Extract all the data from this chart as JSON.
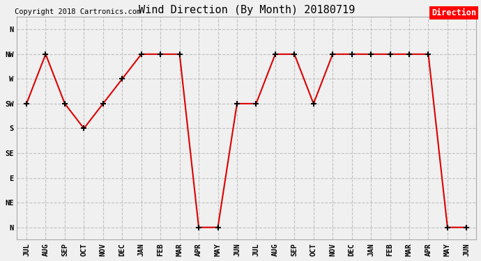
{
  "title": "Wind Direction (By Month) 20180719",
  "copyright": "Copyright 2018 Cartronics.com",
  "legend_label": "Direction",
  "legend_bg": "#ff0000",
  "legend_text_color": "#ffffff",
  "x_labels": [
    "JUL",
    "AUG",
    "SEP",
    "OCT",
    "NOV",
    "DEC",
    "JAN",
    "FEB",
    "MAR",
    "APR",
    "MAY",
    "JUN",
    "JUL",
    "AUG",
    "SEP",
    "OCT",
    "NOV",
    "DEC",
    "JAN",
    "FEB",
    "MAR",
    "APR",
    "MAY",
    "JUN"
  ],
  "y_labels_top_to_bottom": [
    "N",
    "NW",
    "W",
    "SW",
    "S",
    "SE",
    "E",
    "NE",
    "N"
  ],
  "y_numeric": [
    8,
    7,
    6,
    5,
    4,
    3,
    2,
    1,
    0
  ],
  "data_values": [
    5,
    7,
    5,
    4,
    5,
    6,
    7,
    7,
    7,
    0,
    0,
    5,
    5,
    7,
    7,
    5,
    7,
    7,
    7,
    7,
    7,
    7,
    0,
    0
  ],
  "line_color": "#dd0000",
  "marker_color": "#000000",
  "marker_size": 6,
  "bg_color": "#f0f0f0",
  "grid_color": "#c0c0c0",
  "title_fontsize": 11,
  "axis_fontsize": 7.5,
  "copyright_fontsize": 7.5
}
